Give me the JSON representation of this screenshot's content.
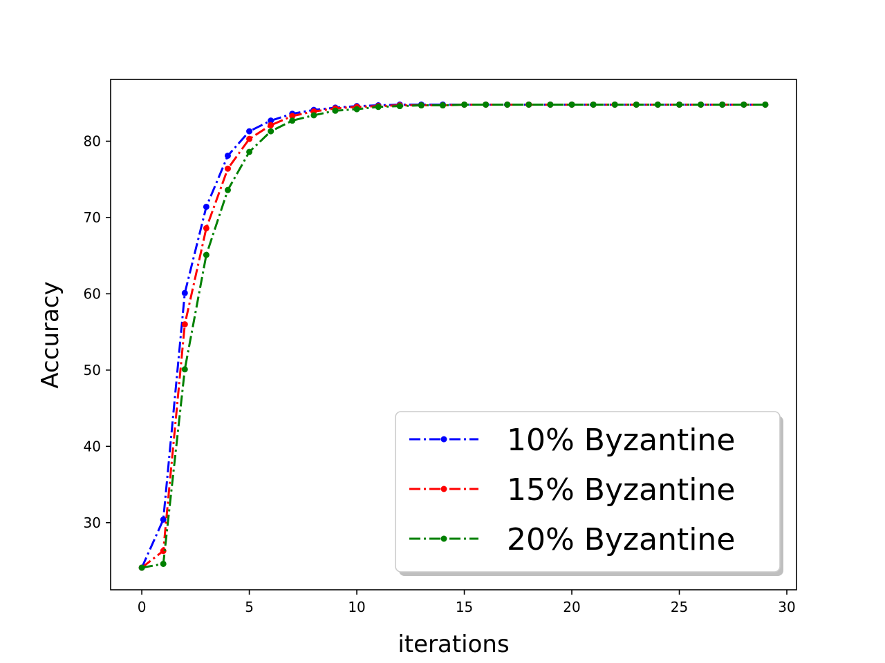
{
  "chart_data": {
    "type": "line",
    "title": "",
    "xlabel": "iterations",
    "ylabel": "Accuracy",
    "xlim": [
      -1.45,
      30.45
    ],
    "ylim": [
      21.2,
      88.1
    ],
    "xticks": [
      0,
      5,
      10,
      15,
      20,
      25,
      30
    ],
    "yticks": [
      30,
      40,
      50,
      60,
      70,
      80
    ],
    "grid": false,
    "legend_position": "lower-right",
    "line_style": "dash-dot with dot markers",
    "x": [
      0,
      1,
      2,
      3,
      4,
      5,
      6,
      7,
      8,
      9,
      10,
      11,
      12,
      13,
      14,
      15,
      16,
      17,
      18,
      19,
      20,
      21,
      22,
      23,
      24,
      25,
      26,
      27,
      28,
      29
    ],
    "series": [
      {
        "name": "10% Byzantine",
        "color": "#0000ff",
        "values": [
          24.1,
          30.4,
          60.1,
          71.4,
          78.1,
          81.3,
          82.7,
          83.6,
          84.1,
          84.4,
          84.6,
          84.7,
          84.8,
          84.8,
          84.8,
          84.8,
          84.8,
          84.8,
          84.8,
          84.8,
          84.8,
          84.8,
          84.8,
          84.8,
          84.8,
          84.8,
          84.8,
          84.8,
          84.8,
          84.8
        ]
      },
      {
        "name": "15% Byzantine",
        "color": "#ff0000",
        "values": [
          24.1,
          26.3,
          56.0,
          68.6,
          76.4,
          80.3,
          82.1,
          83.3,
          83.9,
          84.3,
          84.5,
          84.6,
          84.7,
          84.7,
          84.7,
          84.8,
          84.8,
          84.8,
          84.8,
          84.8,
          84.8,
          84.8,
          84.8,
          84.8,
          84.8,
          84.8,
          84.8,
          84.8,
          84.8,
          84.8
        ]
      },
      {
        "name": "20% Byzantine",
        "color": "#008000",
        "values": [
          24.1,
          24.6,
          50.1,
          65.1,
          73.6,
          78.6,
          81.3,
          82.7,
          83.4,
          84.0,
          84.2,
          84.5,
          84.6,
          84.7,
          84.7,
          84.8,
          84.8,
          84.8,
          84.8,
          84.8,
          84.8,
          84.8,
          84.8,
          84.8,
          84.8,
          84.8,
          84.8,
          84.8,
          84.8,
          84.8
        ]
      }
    ]
  }
}
